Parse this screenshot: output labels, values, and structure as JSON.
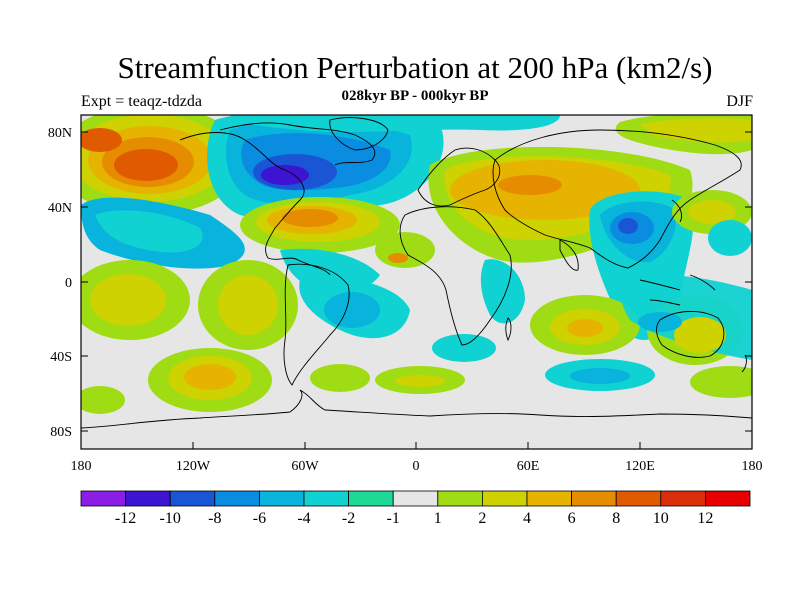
{
  "title": "Streamfunction Perturbation at 200 hPa (km2/s)",
  "subtitle": "028kyr BP - 000kyr BP",
  "left_label": "Expt = teaqz-tdzda",
  "right_label": "DJF",
  "lat_ticks": [
    "80N",
    "40N",
    "0",
    "40S",
    "80S"
  ],
  "lon_ticks": [
    "180",
    "120W",
    "60W",
    "0",
    "60E",
    "120E",
    "180"
  ],
  "colorbar": {
    "labels": [
      "-12",
      "-10",
      "-8",
      "-6",
      "-4",
      "-2",
      "-1",
      "1",
      "2",
      "4",
      "6",
      "8",
      "10",
      "12"
    ],
    "colors": [
      "#8a1ee6",
      "#3c14d2",
      "#1a55d6",
      "#0a8ce0",
      "#08b4dc",
      "#10d2d2",
      "#1ed896",
      "#e6e6e6",
      "#a0dc14",
      "#cdd200",
      "#e6b400",
      "#e68c00",
      "#e05a00",
      "#dc2d0a",
      "#e60000"
    ]
  },
  "colors": {
    "neutral": "#e6e6e6",
    "frame": "#000000"
  }
}
